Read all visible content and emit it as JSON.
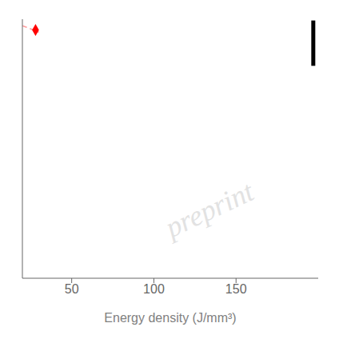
{
  "chart_data": {
    "type": "scatter",
    "xlabel": "Energy density (J/mm³)",
    "xlim": [
      20,
      200
    ],
    "xticks": [
      50,
      100,
      150
    ],
    "ylim": [
      0,
      12
    ],
    "yticks": [],
    "tick_labels": "x",
    "grid": false,
    "annotations": [
      {
        "text": "preprint",
        "color": "#d0d0d0"
      }
    ],
    "series": [
      {
        "type": "line",
        "x": [
          20,
          30
        ],
        "values": [
          11.7,
          11.4
        ],
        "color": "#ff9999",
        "line_style": "dashed"
      },
      {
        "type": "scatter",
        "x": [
          28
        ],
        "values": [
          11.5
        ],
        "color": "#ff0000",
        "marker": "diamond"
      },
      {
        "type": "line",
        "x": [
          197,
          197
        ],
        "values": [
          9.84,
          11.94
        ],
        "color": "#000000",
        "line_style": "solid"
      }
    ]
  }
}
